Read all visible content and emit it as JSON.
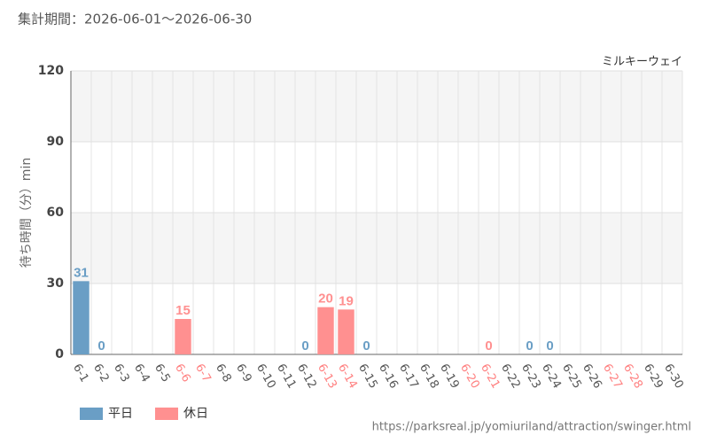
{
  "chart_data": {
    "type": "bar",
    "title": "集計期間：2026-06-01～2026-06-30",
    "subtitle": "ミルキーウェイ",
    "y_label": "待ち時間（分）min",
    "source": "https://parksreal.jp/yomiuriland/attraction/swinger.html",
    "categories": [
      "6-1",
      "6-2",
      "6-3",
      "6-4",
      "6-5",
      "6-6",
      "6-7",
      "6-8",
      "6-9",
      "6-10",
      "6-11",
      "6-12",
      "6-13",
      "6-14",
      "6-15",
      "6-16",
      "6-17",
      "6-18",
      "6-19",
      "6-20",
      "6-21",
      "6-22",
      "6-23",
      "6-24",
      "6-25",
      "6-26",
      "6-27",
      "6-28",
      "6-29",
      "6-30"
    ],
    "category_colors": [
      "#555555",
      "#555555",
      "#555555",
      "#555555",
      "#555555",
      "#ff8080",
      "#ff8080",
      "#555555",
      "#555555",
      "#555555",
      "#555555",
      "#555555",
      "#ff8080",
      "#ff8080",
      "#555555",
      "#555555",
      "#555555",
      "#555555",
      "#555555",
      "#ff8080",
      "#ff8080",
      "#555555",
      "#555555",
      "#555555",
      "#555555",
      "#555555",
      "#ff8080",
      "#ff8080",
      "#555555",
      "#555555"
    ],
    "series": [
      {
        "name": "平日",
        "color": "#6a9ec5",
        "values": [
          31,
          0,
          null,
          null,
          null,
          null,
          null,
          null,
          null,
          null,
          null,
          0,
          null,
          null,
          0,
          null,
          null,
          null,
          null,
          null,
          null,
          null,
          0,
          0,
          null,
          null,
          null,
          null,
          null,
          null
        ]
      },
      {
        "name": "休日",
        "color": "#ff9090",
        "values": [
          null,
          null,
          null,
          null,
          null,
          15,
          null,
          null,
          null,
          null,
          null,
          null,
          20,
          19,
          null,
          null,
          null,
          null,
          null,
          null,
          0,
          null,
          null,
          null,
          null,
          null,
          null,
          null,
          null,
          null
        ]
      }
    ],
    "ylim": [
      0,
      120
    ],
    "yticks": [
      0,
      30,
      60,
      90,
      120
    ],
    "grid": true
  }
}
